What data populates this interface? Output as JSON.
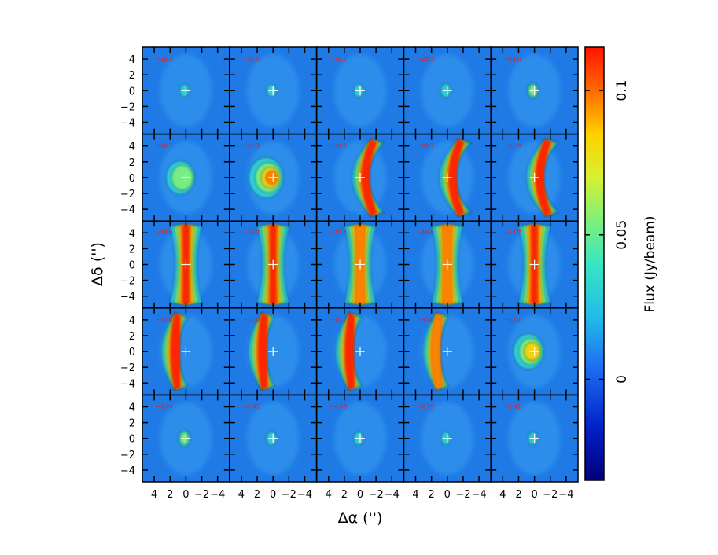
{
  "figure": {
    "xlabel": "Δα ('')",
    "ylabel": "Δδ ('')",
    "colorbar_label": "Flux (Jy/beam)"
  },
  "chart_data": {
    "type": "heatmap",
    "description_kind": "channel-map grid, 5 rows x 5 columns",
    "grid": {
      "rows": 5,
      "cols": 5
    },
    "xlabel": "Δα ('')",
    "ylabel": "Δδ ('')",
    "x_ticks": [
      4,
      2,
      0,
      -2,
      -4
    ],
    "x_tick_labels": [
      "4",
      "2",
      "0",
      "−2",
      "−4"
    ],
    "y_ticks": [
      4,
      2,
      0,
      -2,
      -4
    ],
    "y_tick_labels": [
      "4",
      "2",
      "0",
      "−2",
      "−4"
    ],
    "xlim": [
      5.5,
      -5.5
    ],
    "ylim": [
      -5.5,
      5.5
    ],
    "colorbar": {
      "label": "Flux (Jy/beam)",
      "range": [
        -0.035,
        0.115
      ],
      "ticks": [
        0,
        0.05,
        0.1
      ],
      "tick_labels": [
        "0",
        "0.05",
        "0.1"
      ],
      "colormap": "rainbow (dark blue → cyan → green → yellow → red)"
    },
    "panels": [
      {
        "label": "−33.3",
        "intensity": 0.05,
        "shape": "compact"
      },
      {
        "label": "−32.0",
        "intensity": 0.06,
        "shape": "compact"
      },
      {
        "label": "−30.7",
        "intensity": 0.08,
        "shape": "compact"
      },
      {
        "label": "−29.3",
        "intensity": 0.15,
        "shape": "compact"
      },
      {
        "label": "−28.0",
        "intensity": 0.3,
        "shape": "compact"
      },
      {
        "label": "−26.7",
        "intensity": 0.45,
        "shape": "blob"
      },
      {
        "label": "−25.3",
        "intensity": 0.8,
        "shape": "blob"
      },
      {
        "label": "−24.0",
        "intensity": 1.0,
        "shape": "arc"
      },
      {
        "label": "−22.7",
        "intensity": 1.0,
        "shape": "arc"
      },
      {
        "label": "−21.4",
        "intensity": 1.0,
        "shape": "arc"
      },
      {
        "label": "−20.0",
        "intensity": 1.0,
        "shape": "hourglass"
      },
      {
        "label": "−18.7",
        "intensity": 1.0,
        "shape": "hourglass"
      },
      {
        "label": "−17.4",
        "intensity": 0.95,
        "shape": "hourglass"
      },
      {
        "label": "−16.0",
        "intensity": 0.95,
        "shape": "hourglass"
      },
      {
        "label": "−14.7",
        "intensity": 1.0,
        "shape": "hourglass"
      },
      {
        "label": "−13.4",
        "intensity": 1.0,
        "shape": "arcR"
      },
      {
        "label": "−12.0",
        "intensity": 1.0,
        "shape": "arcR"
      },
      {
        "label": "−10.7",
        "intensity": 1.0,
        "shape": "arcR"
      },
      {
        "label": "−9.40",
        "intensity": 0.9,
        "shape": "arcR"
      },
      {
        "label": "−8.07",
        "intensity": 0.55,
        "shape": "blob"
      },
      {
        "label": "−6.74",
        "intensity": 0.4,
        "shape": "compact"
      },
      {
        "label": "−5.41",
        "intensity": 0.15,
        "shape": "compact"
      },
      {
        "label": "−4.08",
        "intensity": 0.1,
        "shape": "compact"
      },
      {
        "label": "−2.75",
        "intensity": 0.08,
        "shape": "compact"
      },
      {
        "label": "−1.42",
        "intensity": 0.07,
        "shape": "compact"
      }
    ]
  }
}
